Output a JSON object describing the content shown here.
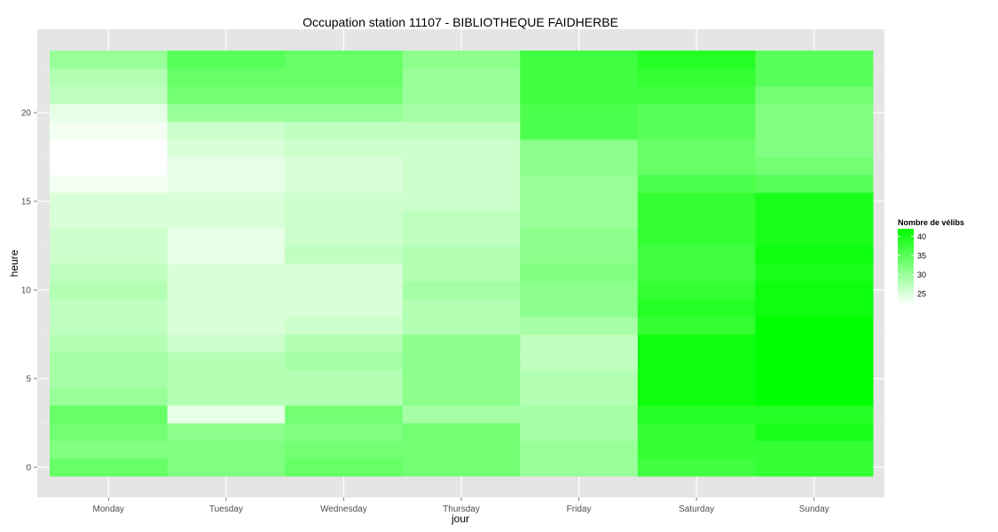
{
  "chart_data": {
    "type": "heatmap",
    "title": "Occupation station 11107 - BIBLIOTHEQUE FAIDHERBE",
    "xlabel": "jour",
    "ylabel": "heure",
    "x_categories": [
      "Monday",
      "Tuesday",
      "Wednesday",
      "Thursday",
      "Friday",
      "Saturday",
      "Sunday"
    ],
    "y_ticks": [
      0,
      5,
      10,
      15,
      20
    ],
    "y_range": [
      -0.5,
      23.5
    ],
    "grid": true,
    "legend": {
      "title": "Nombre de vélibs",
      "position": "right",
      "ticks": [
        25,
        30,
        35,
        40
      ],
      "min": 22,
      "max": 42,
      "low_color": "#ffffff",
      "high_color": "#00ff00"
    },
    "values_by_day": {
      "Monday": [
        34,
        32,
        33,
        34,
        30,
        29,
        29,
        28,
        27,
        27,
        28,
        27,
        26,
        26,
        25,
        25,
        23,
        22,
        22,
        23,
        24,
        27,
        28,
        30
      ],
      "Tuesday": [
        32,
        32,
        31,
        24,
        28,
        28,
        28,
        26,
        25,
        25,
        25,
        25,
        24,
        24,
        25,
        25,
        24,
        24,
        25,
        26,
        30,
        33,
        34,
        35
      ],
      "Wednesday": [
        34,
        33,
        32,
        33,
        28,
        28,
        29,
        28,
        26,
        25,
        25,
        25,
        27,
        26,
        26,
        26,
        25,
        25,
        26,
        27,
        30,
        33,
        34,
        34
      ],
      "Thursday": [
        33,
        33,
        33,
        29,
        31,
        31,
        31,
        31,
        28,
        28,
        29,
        28,
        28,
        27,
        27,
        26,
        26,
        26,
        26,
        27,
        29,
        30,
        30,
        31
      ],
      "Friday": [
        30,
        30,
        29,
        29,
        28,
        28,
        27,
        27,
        29,
        31,
        31,
        32,
        31,
        31,
        30,
        30,
        30,
        31,
        31,
        36,
        36,
        37,
        37,
        37
      ],
      "Saturday": [
        37,
        38,
        38,
        39,
        41,
        41,
        41,
        41,
        38,
        39,
        38,
        37,
        37,
        38,
        38,
        38,
        36,
        34,
        34,
        35,
        35,
        37,
        38,
        39
      ],
      "Sunday": [
        38,
        38,
        40,
        39,
        42,
        42,
        42,
        42,
        42,
        41,
        41,
        40,
        41,
        40,
        40,
        40,
        35,
        33,
        32,
        32,
        32,
        33,
        35,
        35
      ]
    }
  }
}
